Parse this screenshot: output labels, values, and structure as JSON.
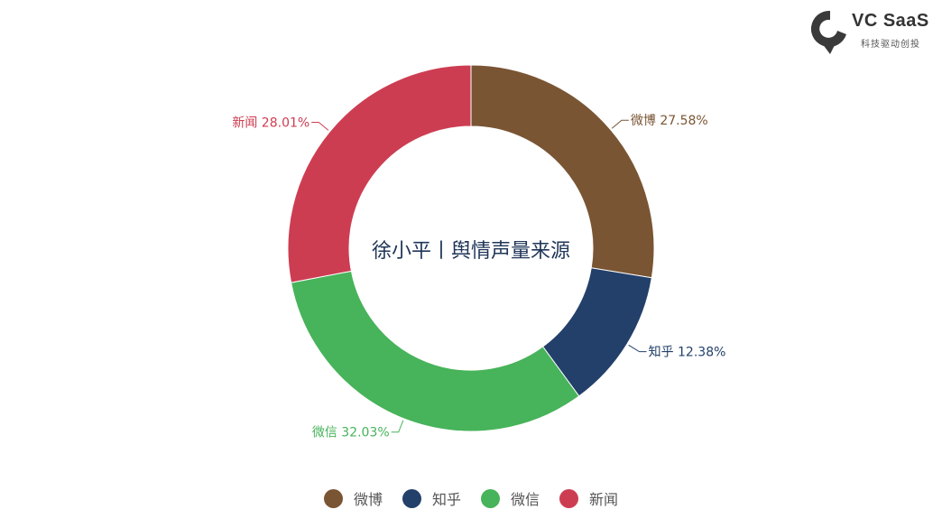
{
  "logo": {
    "title": "VC SaaS",
    "subtitle": "科技驱动创投",
    "color": "#333333"
  },
  "chart_data": {
    "type": "pie",
    "variant": "donut",
    "title": "徐小平丨舆情声量来源",
    "categories": [
      "微博",
      "知乎",
      "微信",
      "新闻"
    ],
    "values": [
      27.58,
      12.38,
      32.03,
      28.01
    ],
    "unit": "%",
    "colors": [
      "#7a5533",
      "#23406a",
      "#47b35a",
      "#cd3d52"
    ],
    "labels": [
      "微博 27.58%",
      "知乎 12.38%",
      "微信 32.03%",
      "新闻 28.01%"
    ],
    "legend": {
      "position": "bottom",
      "entries": [
        "微博",
        "知乎",
        "微信",
        "新闻"
      ]
    },
    "start_angle": "12 o'clock, clockwise"
  },
  "legend": {
    "items": [
      {
        "label": "微博",
        "color": "#7a5533"
      },
      {
        "label": "知乎",
        "color": "#23406a"
      },
      {
        "label": "微信",
        "color": "#47b35a"
      },
      {
        "label": "新闻",
        "color": "#cd3d52"
      }
    ]
  }
}
